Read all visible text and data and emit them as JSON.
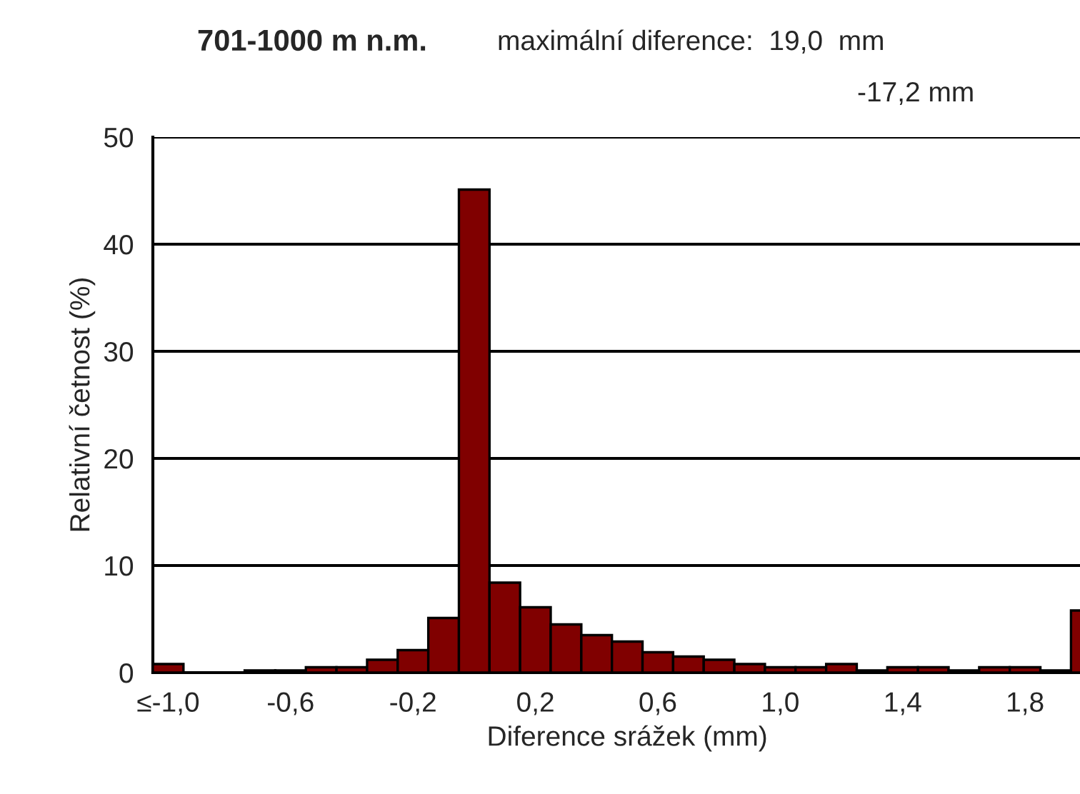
{
  "chart_data": {
    "type": "bar",
    "title": "701-1000 m n.m.",
    "annotations": [
      "maximální diference:  19,0  mm",
      "-17,2 mm"
    ],
    "xlabel": "Diference srážek (mm)",
    "ylabel": "Relativní četnost (%)",
    "categories": [
      "≤-1,0",
      null,
      null,
      null,
      "-0,6",
      null,
      null,
      null,
      "-0,2",
      null,
      null,
      null,
      "0,2",
      null,
      null,
      null,
      "0,6",
      null,
      null,
      null,
      "1,0",
      null,
      null,
      null,
      "1,4",
      null,
      null,
      null,
      "1,8",
      null,
      null
    ],
    "values": [
      0.8,
      0,
      0,
      0.2,
      0.2,
      0.5,
      0.5,
      1.2,
      2.1,
      5.1,
      45.1,
      8.4,
      6.1,
      4.5,
      3.5,
      2.9,
      1.9,
      1.5,
      1.2,
      0.8,
      0.5,
      0.5,
      0.8,
      0.2,
      0.5,
      0.5,
      0.2,
      0.5,
      0.5,
      0.2,
      5.8
    ],
    "color": "#800000",
    "ylim": [
      0,
      50
    ],
    "yticks": [
      0,
      10,
      20,
      30,
      40,
      50
    ],
    "grid": "y",
    "legend": false
  }
}
